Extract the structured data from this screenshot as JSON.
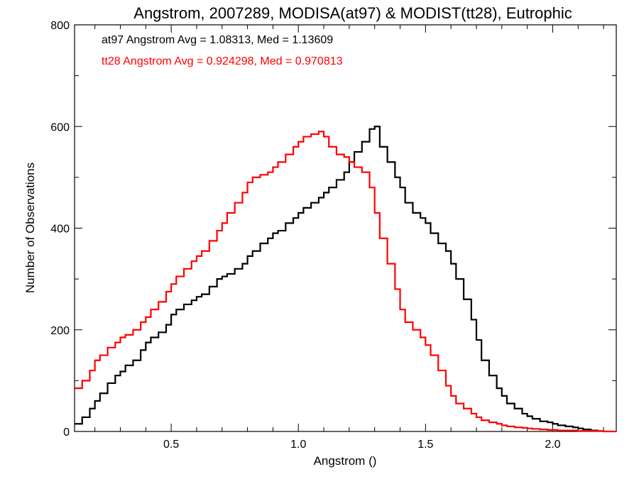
{
  "chart_data": {
    "type": "line",
    "title": "Angstrom, 2007289, MODISA(at97) & MODIST(tt28), Eutrophic",
    "xlabel": "Angstrom ()",
    "ylabel": "Number of Observations",
    "xlim": [
      0.12,
      2.25
    ],
    "ylim": [
      0,
      800
    ],
    "xticks": [
      0.5,
      1.0,
      1.5,
      2.0
    ],
    "xtick_labels": [
      "0.5",
      "1.0",
      "1.5",
      "2.0"
    ],
    "yticks": [
      0,
      200,
      400,
      600,
      800
    ],
    "ytick_labels": [
      "0",
      "200",
      "400",
      "600",
      "800"
    ],
    "grid": false,
    "step": "histogram",
    "annotations": [
      {
        "text": "at97 Angstrom Avg = 1.08313, Med = 1.13609",
        "color": "#000000"
      },
      {
        "text": "tt28 Angstrom Avg = 0.924298, Med = 0.970813",
        "color": "#ff0000"
      }
    ],
    "series": [
      {
        "color": "#000000",
        "x": [
          0.12,
          0.15,
          0.18,
          0.2,
          0.22,
          0.25,
          0.28,
          0.3,
          0.32,
          0.35,
          0.38,
          0.4,
          0.42,
          0.45,
          0.48,
          0.5,
          0.52,
          0.55,
          0.58,
          0.6,
          0.62,
          0.65,
          0.68,
          0.7,
          0.72,
          0.75,
          0.78,
          0.8,
          0.82,
          0.85,
          0.88,
          0.9,
          0.92,
          0.95,
          0.98,
          1.0,
          1.02,
          1.05,
          1.08,
          1.1,
          1.12,
          1.15,
          1.18,
          1.2,
          1.22,
          1.25,
          1.28,
          1.3,
          1.32,
          1.35,
          1.38,
          1.4,
          1.42,
          1.45,
          1.48,
          1.5,
          1.52,
          1.55,
          1.58,
          1.6,
          1.62,
          1.65,
          1.68,
          1.7,
          1.72,
          1.75,
          1.78,
          1.8,
          1.82,
          1.85,
          1.88,
          1.9,
          1.92,
          1.95,
          1.98,
          2.0,
          2.02,
          2.05,
          2.08,
          2.1,
          2.12,
          2.15
        ],
        "y": [
          15,
          28,
          45,
          60,
          75,
          95,
          110,
          118,
          130,
          140,
          160,
          175,
          185,
          195,
          210,
          230,
          240,
          250,
          258,
          265,
          270,
          285,
          300,
          305,
          310,
          320,
          330,
          345,
          355,
          370,
          380,
          390,
          395,
          410,
          420,
          430,
          440,
          450,
          460,
          470,
          480,
          495,
          510,
          530,
          550,
          570,
          595,
          600,
          560,
          530,
          500,
          480,
          450,
          430,
          420,
          410,
          390,
          370,
          355,
          330,
          300,
          260,
          220,
          180,
          140,
          110,
          85,
          70,
          55,
          45,
          35,
          30,
          25,
          20,
          18,
          15,
          12,
          10,
          8,
          6,
          4,
          2
        ]
      },
      {
        "color": "#ff0000",
        "x": [
          0.12,
          0.15,
          0.18,
          0.2,
          0.22,
          0.25,
          0.28,
          0.3,
          0.32,
          0.35,
          0.38,
          0.4,
          0.42,
          0.45,
          0.48,
          0.5,
          0.52,
          0.55,
          0.58,
          0.6,
          0.62,
          0.65,
          0.68,
          0.7,
          0.72,
          0.75,
          0.78,
          0.8,
          0.82,
          0.85,
          0.88,
          0.9,
          0.92,
          0.95,
          0.98,
          1.0,
          1.02,
          1.05,
          1.08,
          1.1,
          1.12,
          1.15,
          1.18,
          1.2,
          1.22,
          1.25,
          1.28,
          1.3,
          1.32,
          1.35,
          1.38,
          1.4,
          1.42,
          1.45,
          1.48,
          1.5,
          1.52,
          1.55,
          1.58,
          1.6,
          1.62,
          1.65,
          1.68,
          1.7,
          1.72,
          1.75,
          1.78,
          1.8,
          1.82,
          1.85,
          1.88,
          1.9,
          1.92,
          1.95,
          1.98,
          2.0,
          2.02,
          2.05,
          2.08,
          2.1,
          2.12,
          2.15,
          2.2,
          2.25
        ],
        "y": [
          85,
          100,
          120,
          140,
          150,
          165,
          175,
          185,
          190,
          200,
          215,
          225,
          240,
          255,
          275,
          290,
          305,
          320,
          335,
          345,
          355,
          375,
          395,
          410,
          430,
          450,
          470,
          490,
          500,
          505,
          510,
          520,
          530,
          545,
          560,
          570,
          580,
          585,
          590,
          580,
          560,
          545,
          540,
          530,
          520,
          510,
          480,
          430,
          380,
          330,
          280,
          240,
          215,
          200,
          185,
          170,
          150,
          120,
          90,
          70,
          55,
          45,
          35,
          28,
          22,
          18,
          15,
          12,
          10,
          8,
          7,
          6,
          5,
          4,
          3,
          3,
          2,
          2,
          2,
          1,
          1,
          1,
          0,
          0
        ]
      }
    ]
  }
}
